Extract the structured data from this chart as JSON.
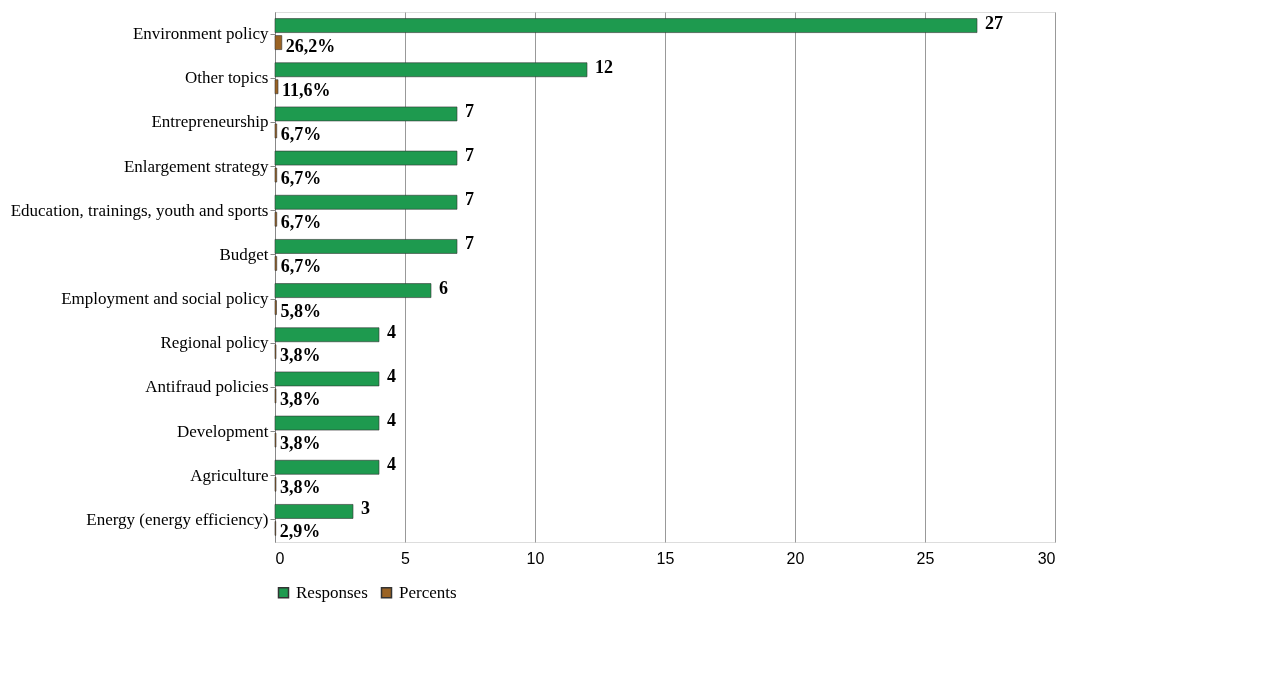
{
  "chart_data": {
    "type": "bar",
    "orientation": "horizontal",
    "categories": [
      "Environment policy",
      "Other topics",
      "Entrepreneurship",
      "Enlargement strategy",
      "Education, trainings, youth and sports",
      "Budget",
      "Employment and social policy",
      "Regional policy",
      "Antifraud policies",
      "Development",
      "Agriculture",
      "Energy (energy efficiency)"
    ],
    "series": [
      {
        "name": "Responses",
        "color": "#1e9a4f",
        "values": [
          27,
          12,
          7,
          7,
          7,
          7,
          6,
          4,
          4,
          4,
          4,
          3
        ],
        "value_labels": [
          "27",
          "12",
          "7",
          "7",
          "7",
          "7",
          "6",
          "4",
          "4",
          "4",
          "4",
          "3"
        ]
      },
      {
        "name": "Percents",
        "color": "#9a6324",
        "values": [
          0.262,
          0.116,
          0.067,
          0.067,
          0.067,
          0.067,
          0.058,
          0.038,
          0.038,
          0.038,
          0.038,
          0.029
        ],
        "value_labels": [
          "26,2%",
          "11,6%",
          "6,7%",
          "6,7%",
          "6,7%",
          "6,7%",
          "5,8%",
          "3,8%",
          "3,8%",
          "3,8%",
          "3,8%",
          "2,9%"
        ]
      }
    ],
    "xlim": [
      0,
      30
    ],
    "xticks": [
      0,
      5,
      10,
      15,
      20,
      25,
      30
    ],
    "grid": "x",
    "legend": "bottom"
  }
}
